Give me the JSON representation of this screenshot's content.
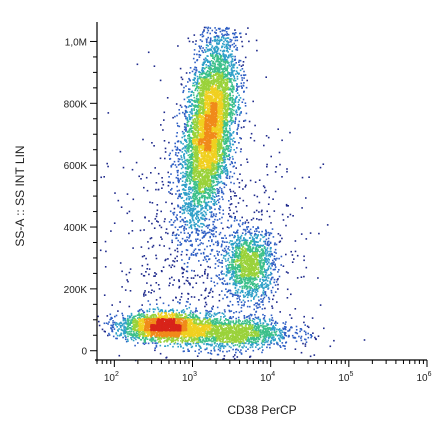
{
  "chart_data": {
    "type": "scatter",
    "style": "density-colored flow cytometry dot plot",
    "xlabel": "CD38 PerCP",
    "ylabel": "SS-A :: SS INT LIN",
    "x_scale": "log",
    "xlim": [
      60,
      1000000
    ],
    "ylim": [
      -30000,
      1050000
    ],
    "x_tick_labels": [
      {
        "base": "10",
        "exp": "2",
        "value": 100
      },
      {
        "base": "10",
        "exp": "3",
        "value": 1000
      },
      {
        "base": "10",
        "exp": "4",
        "value": 10000
      },
      {
        "base": "10",
        "exp": "5",
        "value": 100000
      },
      {
        "base": "10",
        "exp": "6",
        "value": 1000000
      }
    ],
    "y_tick_labels": [
      {
        "label": "0",
        "value": 0
      },
      {
        "label": "200K",
        "value": 200000
      },
      {
        "label": "400K",
        "value": 400000
      },
      {
        "label": "600K",
        "value": 600000
      },
      {
        "label": "800K",
        "value": 800000
      },
      {
        "label": "1,0M",
        "value": 1000000
      }
    ],
    "density_colors": [
      "#1f2a8c",
      "#2f5fc4",
      "#2fa0c8",
      "#3cc08a",
      "#9ad23a",
      "#f0d020",
      "#f08a1a",
      "#d8241a"
    ],
    "populations": [
      {
        "center_x": 1600,
        "center_y": 720000,
        "spread_log_x": 0.17,
        "spread_y": 150000,
        "tilt": 0.45,
        "count": 5200
      },
      {
        "center_x": 5200,
        "center_y": 280000,
        "spread_log_x": 0.16,
        "spread_y": 55000,
        "tilt": 0.0,
        "count": 1300
      },
      {
        "center_x": 420,
        "center_y": 80000,
        "spread_log_x": 0.28,
        "spread_y": 22000,
        "tilt": 0.0,
        "count": 2300
      },
      {
        "center_x": 3000,
        "center_y": 60000,
        "spread_log_x": 0.4,
        "spread_y": 25000,
        "tilt": 0.0,
        "count": 1600
      },
      {
        "center_x": 1500,
        "center_y": 300000,
        "spread_log_x": 0.6,
        "spread_y": 220000,
        "tilt": 0.0,
        "count": 1000
      }
    ]
  }
}
